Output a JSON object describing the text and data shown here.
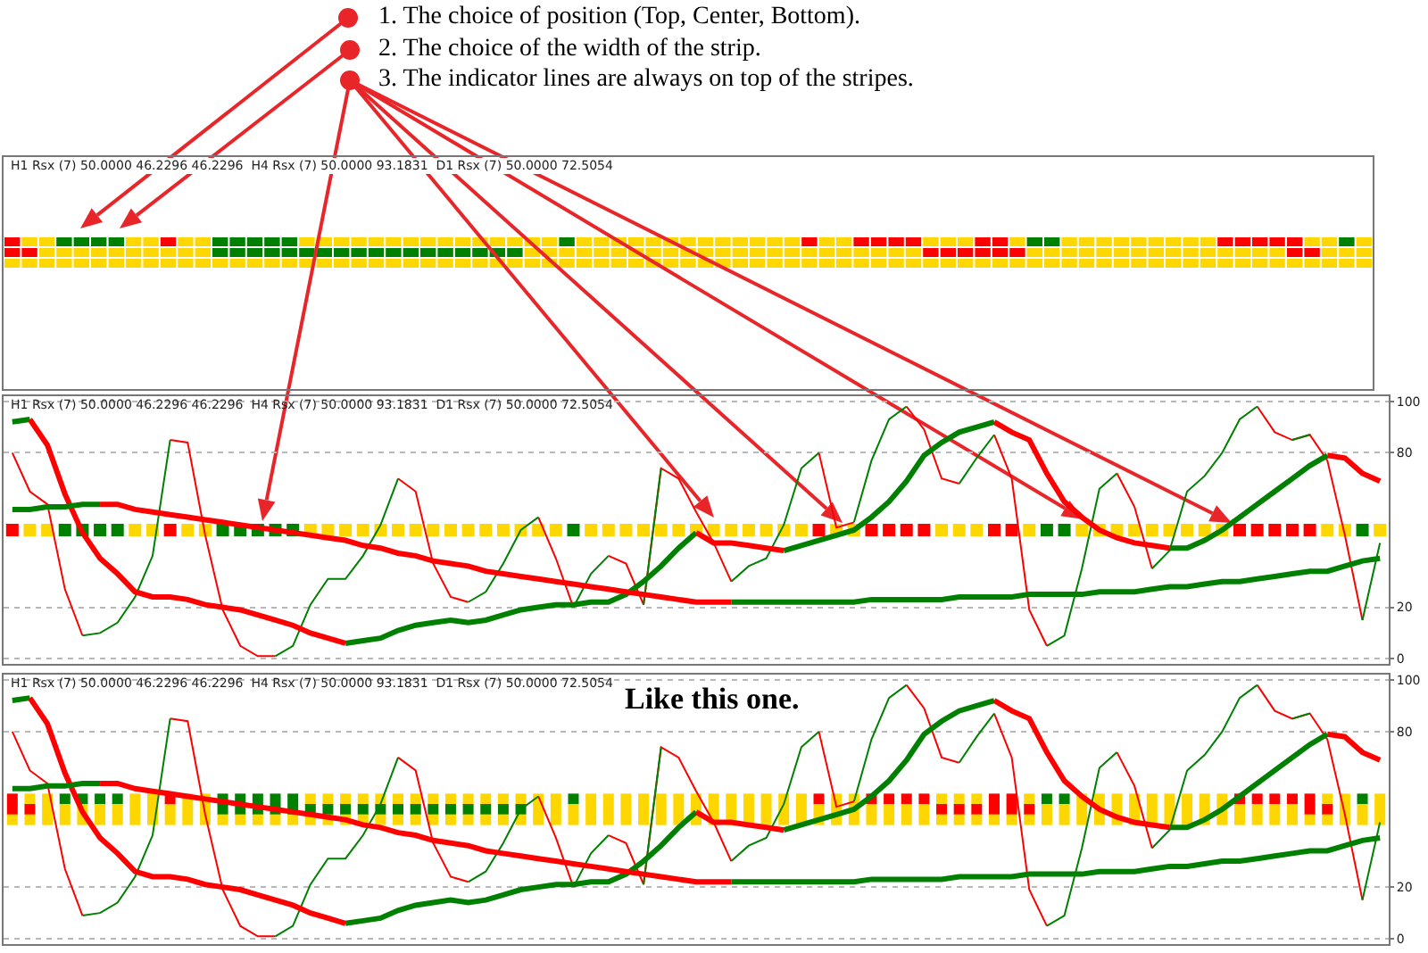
{
  "chart_data": [
    {
      "type": "other",
      "annotations": [
        "H1 Rsx (7) 50.0000 46.2296 46.2296  H4 Rsx (7) 50.0000 93.1831  D1 Rsx (7) 50.0000 72.5054",
        "1. The choice of position (Top, Center, Bottom).",
        "2. The choice of the width of the strip.",
        "3. The indicator lines are always on top of the stripes."
      ]
    },
    {
      "type": "line",
      "annotations": [
        "H1 Rsx (7) 50.0000 46.2296 46.2296  H4 Rsx (7) 50.0000 93.1831  D1 Rsx (7) 50.0000 72.5054"
      ],
      "categories": [
        null,
        null,
        null,
        null,
        null,
        null,
        null,
        null,
        null,
        null,
        null,
        null,
        null,
        null,
        null,
        null,
        null,
        null,
        null,
        null,
        null,
        null,
        null,
        null,
        null,
        null,
        null,
        null,
        null,
        null,
        null,
        null,
        null,
        null,
        null,
        null,
        null,
        null,
        null,
        null,
        null,
        null,
        null,
        null,
        null,
        null,
        null,
        null,
        null,
        null,
        null,
        null,
        null,
        null,
        null,
        null,
        null,
        null,
        null,
        null,
        null,
        null,
        null,
        null,
        null,
        null,
        null,
        null,
        null,
        null,
        null,
        null,
        null,
        null,
        null,
        null,
        null,
        null,
        null
      ],
      "ylim": [
        -2,
        102
      ],
      "yticks": [
        0,
        20,
        80,
        100
      ],
      "grid": "y",
      "series": [
        {
          "type": "scatter",
          "marker": "square",
          "values": [
            50,
            50,
            50,
            50,
            50,
            50,
            50,
            50,
            50,
            50,
            50,
            50,
            50,
            50,
            50,
            50,
            50,
            50,
            50,
            50,
            50,
            50,
            50,
            50,
            50,
            50,
            50,
            50,
            50,
            50,
            50,
            50,
            50,
            50,
            50,
            50,
            50,
            50,
            50,
            50,
            50,
            50,
            50,
            50,
            50,
            50,
            50,
            50,
            50,
            50,
            50,
            50,
            50,
            50,
            50,
            50,
            50,
            50,
            50,
            50,
            50,
            50,
            50,
            50,
            50,
            50,
            50,
            50,
            50,
            50,
            50,
            50,
            50,
            50,
            50,
            50,
            50,
            50,
            50
          ],
          "colors": [
            "#ff0000",
            "#ffd700",
            "#ffd700",
            "#008000",
            "#008000",
            "#008000",
            "#008000",
            "#ffd700",
            "#ffd700",
            "#ff0000",
            "#ffd700",
            "#ffd700",
            "#008000",
            "#008000",
            "#008000",
            "#008000",
            "#008000",
            "#ffd700",
            "#ffd700",
            "#ffd700",
            "#ffd700",
            "#ffd700",
            "#ffd700",
            "#ffd700",
            "#ffd700",
            "#ffd700",
            "#ffd700",
            "#ffd700",
            "#ffd700",
            "#ffd700",
            "#ffd700",
            "#ffd700",
            "#008000",
            "#ffd700",
            "#ffd700",
            "#ffd700",
            "#ffd700",
            "#ffd700",
            "#ffd700",
            "#ffd700",
            "#ffd700",
            "#ffd700",
            "#ffd700",
            "#ffd700",
            "#ffd700",
            "#ffd700",
            "#ff0000",
            "#ffd700",
            "#ffd700",
            "#ff0000",
            "#ff0000",
            "#ff0000",
            "#ff0000",
            "#ffd700",
            "#ffd700",
            "#ffd700",
            "#ff0000",
            "#ff0000",
            "#ffd700",
            "#008000",
            "#008000",
            "#ffd700",
            "#ffd700",
            "#ffd700",
            "#ffd700",
            "#ffd700",
            "#ffd700",
            "#ffd700",
            "#ffd700",
            "#ffd700",
            "#ff0000",
            "#ff0000",
            "#ff0000",
            "#ff0000",
            "#ff0000",
            "#ffd700",
            "#ffd700",
            "#008000",
            "#ffd700"
          ]
        },
        {
          "color": "#ff0000",
          "values": [
            80,
            65,
            60,
            27,
            9,
            null,
            null,
            null,
            null,
            85,
            84,
            48,
            19,
            5,
            1,
            1,
            null,
            null,
            null,
            null,
            null,
            null,
            70,
            65,
            37,
            24,
            22,
            null,
            null,
            null,
            55,
            39,
            20,
            null,
            40,
            37,
            21,
            74,
            70,
            57,
            45,
            30,
            null,
            null,
            null,
            null,
            80,
            51,
            53,
            null,
            null,
            98,
            89,
            70,
            68,
            null,
            87,
            70,
            19,
            5,
            null,
            null,
            null,
            72,
            59,
            35,
            null,
            null,
            null,
            null,
            null,
            98,
            88,
            85,
            87,
            77,
            48,
            15,
            null
          ]
        },
        {
          "color": "#008000",
          "values": [
            null,
            null,
            null,
            null,
            9,
            10,
            14,
            24,
            40,
            85,
            null,
            null,
            null,
            null,
            null,
            1,
            5,
            21,
            31,
            31,
            40,
            52,
            70,
            null,
            null,
            null,
            22,
            26,
            37,
            50,
            55,
            null,
            20,
            33,
            40,
            null,
            21,
            74,
            null,
            null,
            null,
            30,
            36,
            39,
            52,
            74,
            80,
            null,
            53,
            77,
            93,
            98,
            null,
            null,
            68,
            78,
            87,
            null,
            null,
            5,
            9,
            35,
            66,
            72,
            null,
            35,
            42,
            65,
            71,
            80,
            93,
            98,
            null,
            85,
            87,
            null,
            null,
            15,
            45
          ]
        },
        {
          "color": "#008000",
          "values": [
            92,
            93,
            null,
            null,
            null,
            null,
            null,
            null,
            null,
            null,
            null,
            null,
            null,
            null,
            null,
            null,
            null,
            null,
            null,
            6,
            7,
            8,
            11,
            13,
            14,
            15,
            14,
            15,
            17,
            19,
            20,
            21,
            21,
            22,
            22,
            25,
            30,
            36,
            43,
            49,
            null,
            null,
            null,
            null,
            42,
            44,
            46,
            48,
            50,
            55,
            61,
            69,
            79,
            84,
            88,
            90,
            92,
            null,
            null,
            null,
            null,
            null,
            null,
            null,
            null,
            null,
            43,
            43,
            46,
            50,
            55,
            60,
            65,
            70,
            75,
            79,
            null,
            null,
            null
          ]
        },
        {
          "color": "#ff0000",
          "values": [
            null,
            93,
            83,
            64,
            49,
            39,
            33,
            26,
            24,
            24,
            23,
            21,
            20,
            19,
            17,
            15,
            13,
            10,
            8,
            6,
            null,
            null,
            null,
            null,
            null,
            null,
            null,
            null,
            null,
            null,
            null,
            null,
            null,
            null,
            null,
            null,
            null,
            null,
            null,
            49,
            45,
            45,
            44,
            43,
            42,
            null,
            null,
            null,
            null,
            null,
            null,
            null,
            null,
            null,
            null,
            null,
            92,
            88,
            85,
            72,
            61,
            55,
            50,
            47,
            45,
            44,
            43,
            null,
            null,
            null,
            null,
            null,
            null,
            null,
            null,
            79,
            78,
            72,
            69
          ]
        },
        {
          "color": "#008000",
          "values": [
            58,
            58,
            59,
            59,
            60,
            60,
            null,
            null,
            null,
            null,
            null,
            null,
            null,
            null,
            null,
            null,
            null,
            null,
            null,
            null,
            null,
            null,
            null,
            null,
            null,
            null,
            null,
            null,
            null,
            null,
            null,
            null,
            null,
            null,
            null,
            null,
            null,
            null,
            null,
            null,
            null,
            22,
            22,
            22,
            22,
            22,
            22,
            22,
            22,
            23,
            23,
            23,
            23,
            23,
            24,
            24,
            24,
            24,
            25,
            25,
            25,
            25,
            26,
            26,
            26,
            27,
            28,
            28,
            29,
            30,
            30,
            31,
            32,
            33,
            34,
            34,
            36,
            38,
            39
          ]
        },
        {
          "color": "#ff0000",
          "values": [
            null,
            null,
            null,
            null,
            null,
            60,
            60,
            58,
            57,
            56,
            55,
            54,
            53,
            52,
            51,
            50,
            49,
            48,
            47,
            46,
            44,
            43,
            41,
            40,
            38,
            37,
            36,
            34,
            33,
            32,
            31,
            30,
            29,
            28,
            27,
            26,
            25,
            24,
            23,
            22,
            22,
            22,
            null,
            null,
            null,
            null,
            null,
            null,
            null,
            null,
            null,
            null,
            null,
            null,
            null,
            null,
            null,
            null,
            null,
            null,
            null,
            null,
            null,
            null,
            null,
            null,
            null,
            null,
            null,
            null,
            null,
            null,
            null,
            null,
            null,
            null,
            null,
            null,
            null
          ]
        }
      ]
    },
    {
      "type": "line",
      "annotations": [
        "H1 Rsx (7) 50.0000 46.2296 46.2296  H4 Rsx (7) 50.0000 93.1831  D1 Rsx (7) 50.0000 72.5054",
        "Like this one."
      ],
      "categories": [
        null,
        null,
        null,
        null,
        null,
        null,
        null,
        null,
        null,
        null,
        null,
        null,
        null,
        null,
        null,
        null,
        null,
        null,
        null,
        null,
        null,
        null,
        null,
        null,
        null,
        null,
        null,
        null,
        null,
        null,
        null,
        null,
        null,
        null,
        null,
        null,
        null,
        null,
        null,
        null,
        null,
        null,
        null,
        null,
        null,
        null,
        null,
        null,
        null,
        null,
        null,
        null,
        null,
        null,
        null,
        null,
        null,
        null,
        null,
        null,
        null,
        null,
        null,
        null,
        null,
        null,
        null,
        null,
        null,
        null,
        null,
        null,
        null,
        null,
        null,
        null,
        null,
        null,
        null
      ],
      "ylim": [
        -2,
        102
      ],
      "yticks": [
        0,
        20,
        80,
        100
      ],
      "grid": "y",
      "series": [
        {
          "type": "scatter",
          "marker": "square",
          "values": [
            54,
            54,
            54,
            54,
            54,
            54,
            54,
            54,
            54,
            54,
            54,
            54,
            54,
            54,
            54,
            54,
            54,
            54,
            54,
            54,
            54,
            54,
            54,
            54,
            54,
            54,
            54,
            54,
            54,
            54,
            54,
            54,
            54,
            54,
            54,
            54,
            54,
            54,
            54,
            54,
            54,
            54,
            54,
            54,
            54,
            54,
            54,
            54,
            54,
            54,
            54,
            54,
            54,
            54,
            54,
            54,
            54,
            54,
            54,
            54,
            54,
            54,
            54,
            54,
            54,
            54,
            54,
            54,
            54,
            54,
            54,
            54,
            54,
            54,
            54,
            54,
            54,
            54,
            54
          ],
          "colors": [
            "#ff0000",
            "#ffd700",
            "#ffd700",
            "#008000",
            "#008000",
            "#008000",
            "#008000",
            "#ffd700",
            "#ffd700",
            "#ff0000",
            "#ffd700",
            "#ffd700",
            "#008000",
            "#008000",
            "#008000",
            "#008000",
            "#008000",
            "#ffd700",
            "#ffd700",
            "#ffd700",
            "#ffd700",
            "#ffd700",
            "#ffd700",
            "#ffd700",
            "#ffd700",
            "#ffd700",
            "#ffd700",
            "#ffd700",
            "#ffd700",
            "#ffd700",
            "#ffd700",
            "#ffd700",
            "#008000",
            "#ffd700",
            "#ffd700",
            "#ffd700",
            "#ffd700",
            "#ffd700",
            "#ffd700",
            "#ffd700",
            "#ffd700",
            "#ffd700",
            "#ffd700",
            "#ffd700",
            "#ffd700",
            "#ffd700",
            "#ff0000",
            "#ffd700",
            "#ffd700",
            "#ff0000",
            "#ff0000",
            "#ff0000",
            "#ff0000",
            "#ffd700",
            "#ffd700",
            "#ffd700",
            "#ff0000",
            "#ff0000",
            "#ffd700",
            "#008000",
            "#008000",
            "#ffd700",
            "#ffd700",
            "#ffd700",
            "#ffd700",
            "#ffd700",
            "#ffd700",
            "#ffd700",
            "#ffd700",
            "#ffd700",
            "#ff0000",
            "#ff0000",
            "#ff0000",
            "#ff0000",
            "#ff0000",
            "#ffd700",
            "#ffd700",
            "#008000",
            "#ffd700"
          ]
        },
        {
          "type": "scatter",
          "marker": "square",
          "values": [
            50,
            50,
            50,
            50,
            50,
            50,
            50,
            50,
            50,
            50,
            50,
            50,
            50,
            50,
            50,
            50,
            50,
            50,
            50,
            50,
            50,
            50,
            50,
            50,
            50,
            50,
            50,
            50,
            50,
            50,
            50,
            50,
            50,
            50,
            50,
            50,
            50,
            50,
            50,
            50,
            50,
            50,
            50,
            50,
            50,
            50,
            50,
            50,
            50,
            50,
            50,
            50,
            50,
            50,
            50,
            50,
            50,
            50,
            50,
            50,
            50,
            50,
            50,
            50,
            50,
            50,
            50,
            50,
            50,
            50,
            50,
            50,
            50,
            50,
            50,
            50,
            50,
            50,
            50
          ],
          "colors": [
            "#ff0000",
            "#ff0000",
            "#ffd700",
            "#ffd700",
            "#ffd700",
            "#ffd700",
            "#ffd700",
            "#ffd700",
            "#ffd700",
            "#ffd700",
            "#ffd700",
            "#ffd700",
            "#008000",
            "#008000",
            "#008000",
            "#008000",
            "#008000",
            "#008000",
            "#008000",
            "#008000",
            "#008000",
            "#008000",
            "#008000",
            "#008000",
            "#008000",
            "#008000",
            "#008000",
            "#008000",
            "#008000",
            "#008000",
            "#ffd700",
            "#ffd700",
            "#ffd700",
            "#ffd700",
            "#ffd700",
            "#ffd700",
            "#ffd700",
            "#ffd700",
            "#ffd700",
            "#ffd700",
            "#ffd700",
            "#ffd700",
            "#ffd700",
            "#ffd700",
            "#ffd700",
            "#ffd700",
            "#ffd700",
            "#ffd700",
            "#ffd700",
            "#ffd700",
            "#ffd700",
            "#ffd700",
            "#ffd700",
            "#ff0000",
            "#ff0000",
            "#ff0000",
            "#ff0000",
            "#ff0000",
            "#ff0000",
            "#ffd700",
            "#ffd700",
            "#ffd700",
            "#ffd700",
            "#ffd700",
            "#ffd700",
            "#ffd700",
            "#ffd700",
            "#ffd700",
            "#ffd700",
            "#ffd700",
            "#ffd700",
            "#ffd700",
            "#ffd700",
            "#ffd700",
            "#ff0000",
            "#ff0000",
            "#ffd700",
            "#ffd700",
            "#ffd700"
          ]
        },
        {
          "type": "scatter",
          "marker": "square",
          "color": "#ffd700",
          "values": [
            46,
            46,
            46,
            46,
            46,
            46,
            46,
            46,
            46,
            46,
            46,
            46,
            46,
            46,
            46,
            46,
            46,
            46,
            46,
            46,
            46,
            46,
            46,
            46,
            46,
            46,
            46,
            46,
            46,
            46,
            46,
            46,
            46,
            46,
            46,
            46,
            46,
            46,
            46,
            46,
            46,
            46,
            46,
            46,
            46,
            46,
            46,
            46,
            46,
            46,
            46,
            46,
            46,
            46,
            46,
            46,
            46,
            46,
            46,
            46,
            46,
            46,
            46,
            46,
            46,
            46,
            46,
            46,
            46,
            46,
            46,
            46,
            46,
            46,
            46,
            46,
            46,
            46,
            46
          ]
        },
        {
          "color": "#ff0000",
          "values": [
            80,
            65,
            60,
            27,
            9,
            null,
            null,
            null,
            null,
            85,
            84,
            48,
            19,
            5,
            1,
            1,
            null,
            null,
            null,
            null,
            null,
            null,
            70,
            65,
            37,
            24,
            22,
            null,
            null,
            null,
            55,
            39,
            20,
            null,
            40,
            37,
            21,
            74,
            70,
            57,
            45,
            30,
            null,
            null,
            null,
            null,
            80,
            51,
            53,
            null,
            null,
            98,
            89,
            70,
            68,
            null,
            87,
            70,
            19,
            5,
            null,
            null,
            null,
            72,
            59,
            35,
            null,
            null,
            null,
            null,
            null,
            98,
            88,
            85,
            87,
            77,
            48,
            15,
            null
          ]
        },
        {
          "color": "#008000",
          "values": [
            null,
            null,
            null,
            null,
            9,
            10,
            14,
            24,
            40,
            85,
            null,
            null,
            null,
            null,
            null,
            1,
            5,
            21,
            31,
            31,
            40,
            52,
            70,
            null,
            null,
            null,
            22,
            26,
            37,
            50,
            55,
            null,
            20,
            33,
            40,
            null,
            21,
            74,
            null,
            null,
            null,
            30,
            36,
            39,
            52,
            74,
            80,
            null,
            53,
            77,
            93,
            98,
            null,
            null,
            68,
            78,
            87,
            null,
            null,
            5,
            9,
            35,
            66,
            72,
            null,
            35,
            42,
            65,
            71,
            80,
            93,
            98,
            null,
            85,
            87,
            null,
            null,
            15,
            45
          ]
        },
        {
          "color": "#008000",
          "values": [
            92,
            93,
            null,
            null,
            null,
            null,
            null,
            null,
            null,
            null,
            null,
            null,
            null,
            null,
            null,
            null,
            null,
            null,
            null,
            6,
            7,
            8,
            11,
            13,
            14,
            15,
            14,
            15,
            17,
            19,
            20,
            21,
            21,
            22,
            22,
            25,
            30,
            36,
            43,
            49,
            null,
            null,
            null,
            null,
            42,
            44,
            46,
            48,
            50,
            55,
            61,
            69,
            79,
            84,
            88,
            90,
            92,
            null,
            null,
            null,
            null,
            null,
            null,
            null,
            null,
            null,
            43,
            43,
            46,
            50,
            55,
            60,
            65,
            70,
            75,
            79,
            null,
            null,
            null
          ]
        },
        {
          "color": "#ff0000",
          "values": [
            null,
            93,
            83,
            64,
            49,
            39,
            33,
            26,
            24,
            24,
            23,
            21,
            20,
            19,
            17,
            15,
            13,
            10,
            8,
            6,
            null,
            null,
            null,
            null,
            null,
            null,
            null,
            null,
            null,
            null,
            null,
            null,
            null,
            null,
            null,
            null,
            null,
            null,
            null,
            49,
            45,
            45,
            44,
            43,
            42,
            null,
            null,
            null,
            null,
            null,
            null,
            null,
            null,
            null,
            null,
            null,
            92,
            88,
            85,
            72,
            61,
            55,
            50,
            47,
            45,
            44,
            43,
            null,
            null,
            null,
            null,
            null,
            null,
            null,
            null,
            79,
            78,
            72,
            69
          ]
        },
        {
          "color": "#008000",
          "values": [
            58,
            58,
            59,
            59,
            60,
            60,
            null,
            null,
            null,
            null,
            null,
            null,
            null,
            null,
            null,
            null,
            null,
            null,
            null,
            null,
            null,
            null,
            null,
            null,
            null,
            null,
            null,
            null,
            null,
            null,
            null,
            null,
            null,
            null,
            null,
            null,
            null,
            null,
            null,
            null,
            null,
            22,
            22,
            22,
            22,
            22,
            22,
            22,
            22,
            23,
            23,
            23,
            23,
            23,
            24,
            24,
            24,
            24,
            25,
            25,
            25,
            25,
            26,
            26,
            26,
            27,
            28,
            28,
            29,
            30,
            30,
            31,
            32,
            33,
            34,
            34,
            36,
            38,
            39
          ]
        },
        {
          "color": "#ff0000",
          "values": [
            null,
            null,
            null,
            null,
            null,
            60,
            60,
            58,
            57,
            56,
            55,
            54,
            53,
            52,
            51,
            50,
            49,
            48,
            47,
            46,
            44,
            43,
            41,
            40,
            38,
            37,
            36,
            34,
            33,
            32,
            31,
            30,
            29,
            28,
            27,
            26,
            25,
            24,
            23,
            22,
            22,
            22,
            null,
            null,
            null,
            null,
            null,
            null,
            null,
            null,
            null,
            null,
            null,
            null,
            null,
            null,
            null,
            null,
            null,
            null,
            null,
            null,
            null,
            null,
            null,
            null,
            null,
            null,
            null,
            null,
            null,
            null,
            null,
            null,
            null,
            null,
            null,
            null,
            null
          ]
        }
      ]
    }
  ]
}
